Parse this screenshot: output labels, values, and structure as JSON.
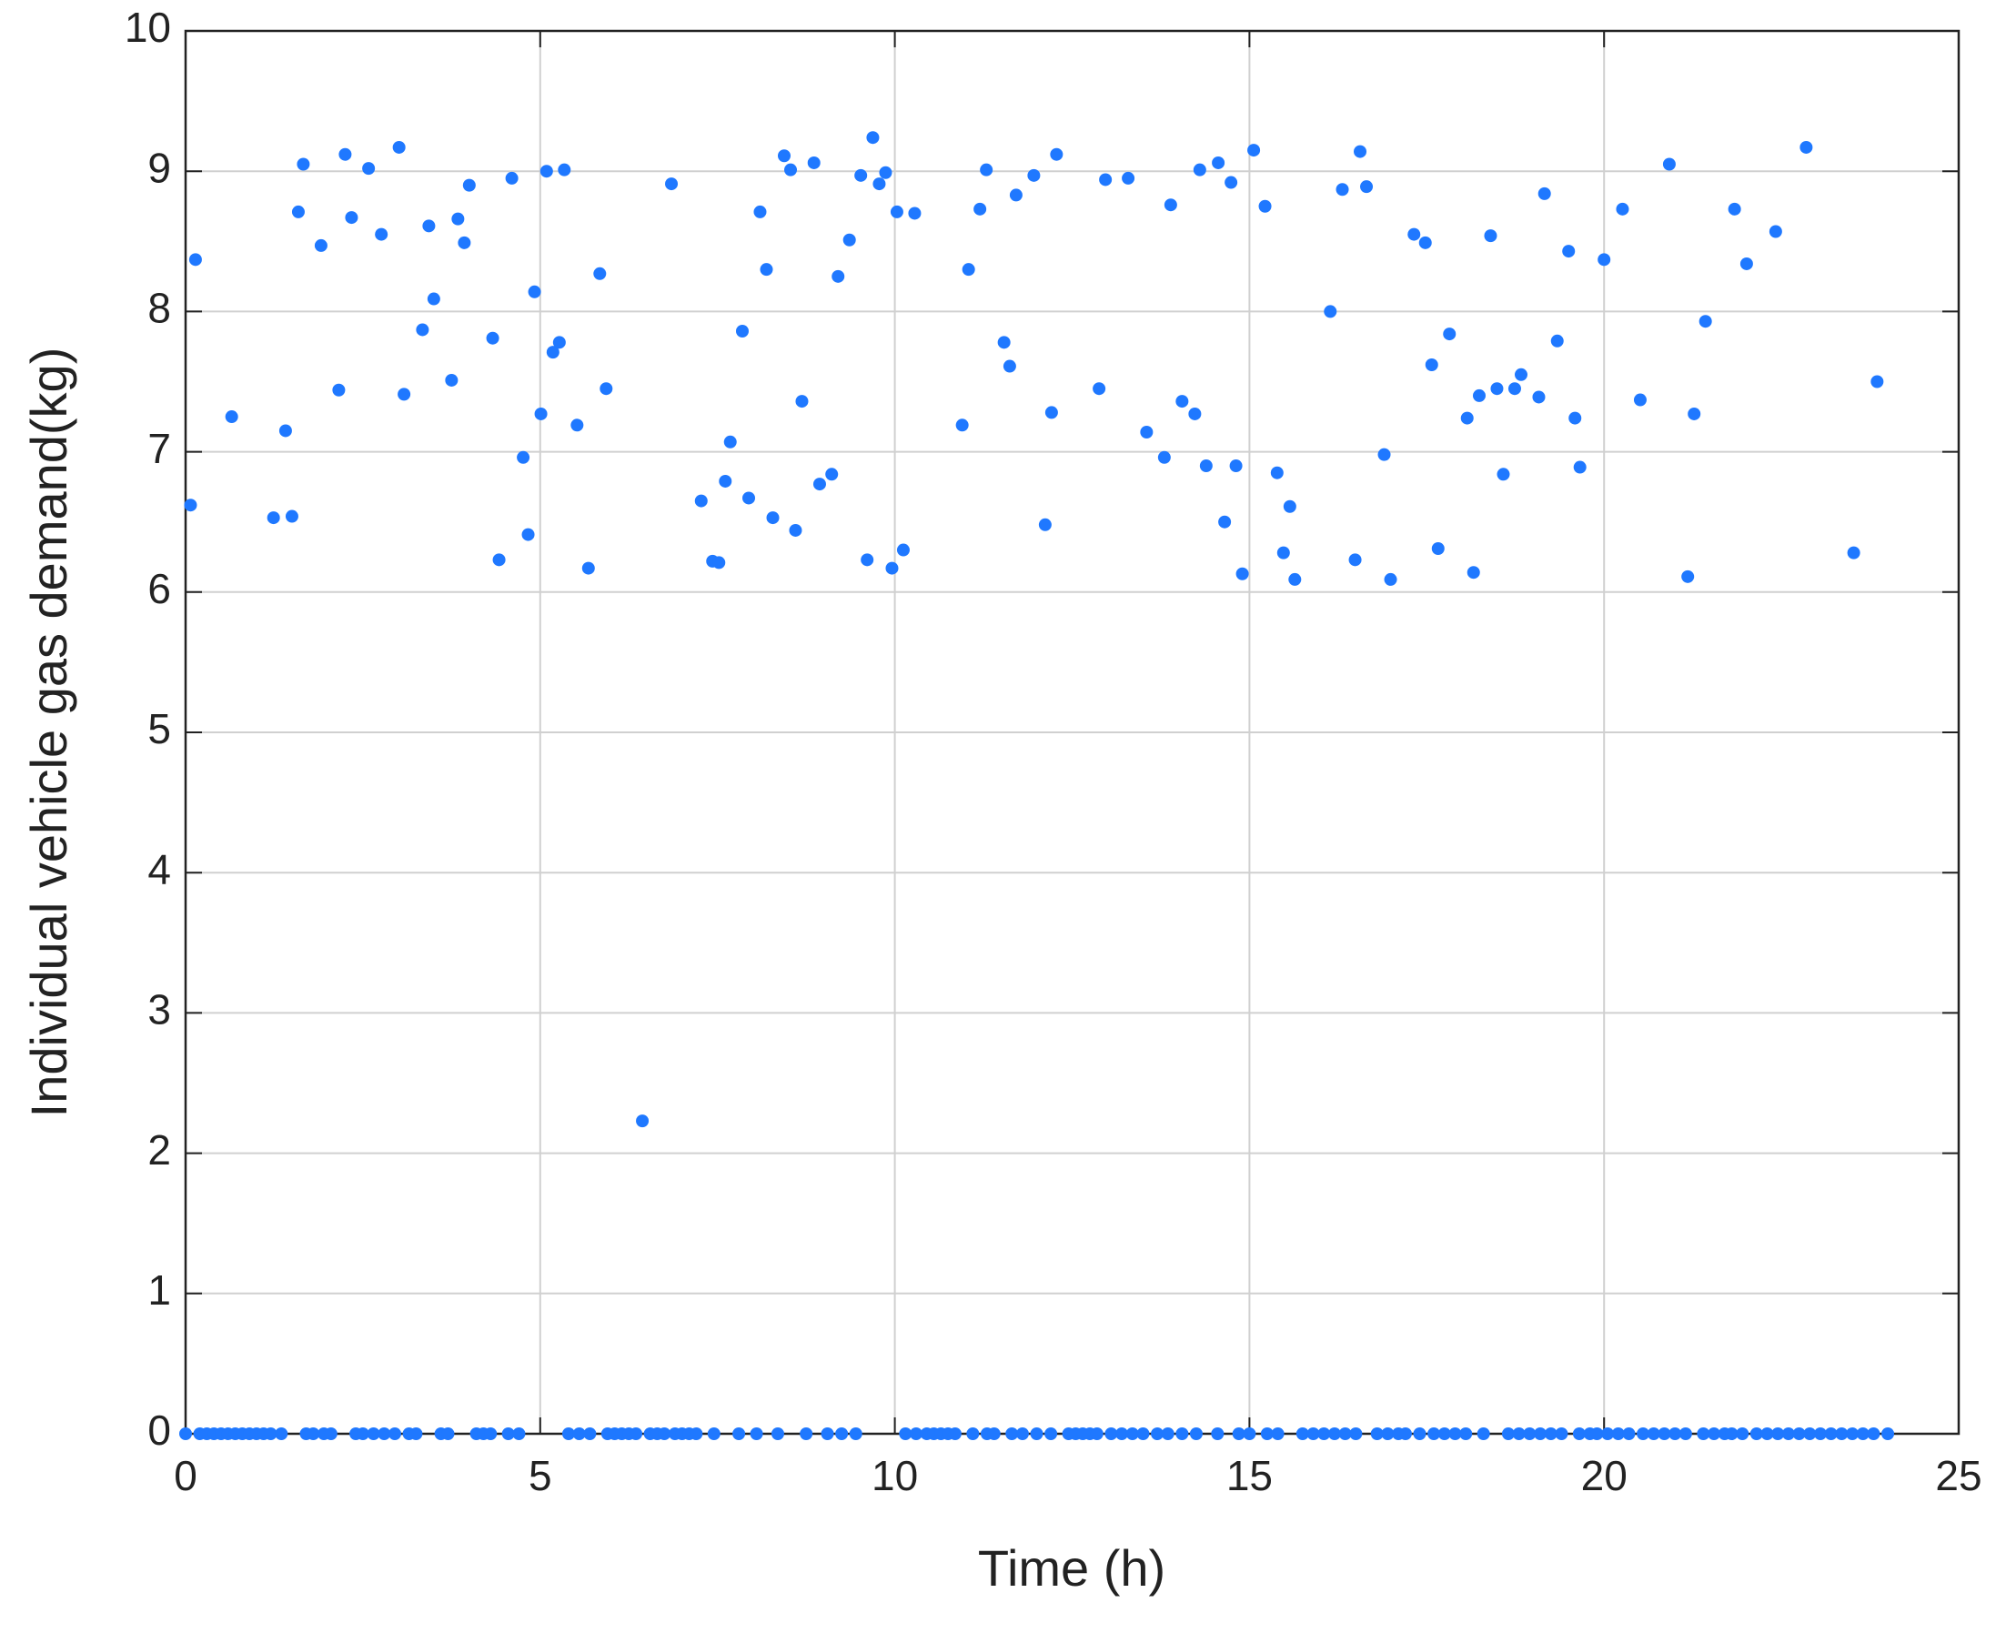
{
  "chart_data": {
    "type": "scatter",
    "xlabel": "Time (h)",
    "ylabel": "Individual vehicle gas demand(kg)",
    "color": "#1f78ff",
    "grid": true,
    "xlim": [
      0,
      25
    ],
    "xticks": [
      0,
      5,
      10,
      15,
      20,
      25
    ],
    "ylim": [
      0,
      10
    ],
    "yticks": [
      0,
      1,
      2,
      3,
      4,
      5,
      6,
      7,
      8,
      9,
      10
    ],
    "x": [
      0.07,
      0.14,
      0.65,
      1.24,
      1.41,
      1.5,
      1.59,
      1.66,
      1.91,
      2.16,
      2.25,
      2.34,
      2.58,
      2.76,
      3.01,
      3.08,
      3.34,
      3.43,
      3.5,
      3.75,
      3.84,
      3.93,
      4.0,
      4.33,
      4.42,
      4.6,
      4.76,
      4.83,
      4.92,
      5.01,
      5.09,
      5.18,
      5.27,
      5.34,
      5.52,
      5.68,
      5.84,
      5.93,
      6.44,
      6.85,
      7.27,
      7.43,
      7.52,
      7.61,
      7.68,
      7.85,
      7.94,
      8.1,
      8.19,
      8.28,
      8.44,
      8.53,
      8.6,
      8.69,
      8.86,
      8.94,
      9.11,
      9.2,
      9.36,
      9.52,
      9.61,
      9.69,
      9.78,
      9.87,
      9.96,
      10.03,
      10.12,
      10.28,
      10.95,
      11.04,
      11.2,
      11.29,
      11.54,
      11.62,
      11.71,
      11.96,
      12.12,
      12.21,
      12.28,
      12.88,
      12.97,
      13.29,
      13.55,
      13.8,
      13.89,
      14.05,
      14.23,
      14.3,
      14.39,
      14.56,
      14.65,
      14.74,
      14.81,
      14.9,
      15.06,
      15.22,
      15.39,
      15.48,
      15.57,
      15.64,
      16.14,
      16.31,
      16.49,
      16.56,
      16.65,
      16.9,
      16.99,
      17.32,
      17.48,
      17.57,
      17.66,
      17.82,
      18.07,
      18.16,
      18.24,
      18.4,
      18.49,
      18.58,
      18.74,
      18.83,
      19.08,
      19.16,
      19.34,
      19.5,
      19.59,
      19.66,
      20.0,
      20.26,
      20.51,
      20.92,
      21.18,
      21.27,
      21.43,
      21.84,
      22.01,
      22.42,
      22.85,
      23.52,
      23.85,
      0,
      0.2,
      0.3,
      0.4,
      0.5,
      0.6,
      0.7,
      0.8,
      0.9,
      1.0,
      1.1,
      1.2,
      1.35,
      1.7,
      1.8,
      1.95,
      2.05,
      2.4,
      2.5,
      2.65,
      2.8,
      2.95,
      3.15,
      3.25,
      3.6,
      3.7,
      4.1,
      4.2,
      4.3,
      4.55,
      4.7,
      5.4,
      5.55,
      5.7,
      5.95,
      6.05,
      6.15,
      6.25,
      6.35,
      6.55,
      6.65,
      6.75,
      6.9,
      7.0,
      7.1,
      7.2,
      7.45,
      7.8,
      8.05,
      8.35,
      8.75,
      9.05,
      9.25,
      9.45,
      10.15,
      10.3,
      10.45,
      10.55,
      10.65,
      10.75,
      10.85,
      11.1,
      11.3,
      11.4,
      11.65,
      11.8,
      12.0,
      12.2,
      12.45,
      12.55,
      12.65,
      12.75,
      12.85,
      13.05,
      13.2,
      13.35,
      13.5,
      13.7,
      13.85,
      14.05,
      14.25,
      14.55,
      14.85,
      15.0,
      15.25,
      15.4,
      15.75,
      15.9,
      16.05,
      16.2,
      16.35,
      16.5,
      16.8,
      16.95,
      17.1,
      17.2,
      17.4,
      17.6,
      17.75,
      17.9,
      18.05,
      18.3,
      18.65,
      18.8,
      18.95,
      19.1,
      19.25,
      19.4,
      19.65,
      19.8,
      19.9,
      20.05,
      20.2,
      20.35,
      20.55,
      20.7,
      20.85,
      21.0,
      21.15,
      21.4,
      21.55,
      21.7,
      21.8,
      21.95,
      22.15,
      22.3,
      22.45,
      22.6,
      22.75,
      22.9,
      23.05,
      23.2,
      23.35,
      23.5,
      23.65,
      23.8,
      24.0
    ],
    "y": [
      6.62,
      8.37,
      7.25,
      6.53,
      7.15,
      6.54,
      8.71,
      9.05,
      8.47,
      7.44,
      9.12,
      8.67,
      9.02,
      8.55,
      9.17,
      7.41,
      7.87,
      8.61,
      8.09,
      7.51,
      8.66,
      8.49,
      8.9,
      7.81,
      6.23,
      8.95,
      6.96,
      6.41,
      8.14,
      7.27,
      9.0,
      7.71,
      7.78,
      9.01,
      7.19,
      6.17,
      8.27,
      7.45,
      2.23,
      8.91,
      6.65,
      6.22,
      6.21,
      6.79,
      7.07,
      7.86,
      6.67,
      8.71,
      8.3,
      6.53,
      9.11,
      9.01,
      6.44,
      7.36,
      9.06,
      6.77,
      6.84,
      8.25,
      8.51,
      8.97,
      6.23,
      9.24,
      8.91,
      8.99,
      6.17,
      8.71,
      6.3,
      8.7,
      7.19,
      8.3,
      8.73,
      9.01,
      7.78,
      7.61,
      8.83,
      8.97,
      6.48,
      7.28,
      9.12,
      7.45,
      8.94,
      8.95,
      7.14,
      6.96,
      8.76,
      7.36,
      7.27,
      9.01,
      6.9,
      9.06,
      6.5,
      8.92,
      6.9,
      6.13,
      9.15,
      8.75,
      6.85,
      6.28,
      6.61,
      6.09,
      8.0,
      8.87,
      6.23,
      9.14,
      8.89,
      6.98,
      6.09,
      8.55,
      8.49,
      7.62,
      6.31,
      7.84,
      7.24,
      6.14,
      7.4,
      8.54,
      7.45,
      6.84,
      7.45,
      7.55,
      7.39,
      8.84,
      7.79,
      8.43,
      7.24,
      6.89,
      8.37,
      8.73,
      7.37,
      9.05,
      6.11,
      7.27,
      7.93,
      8.73,
      8.34,
      8.57,
      9.17,
      6.28,
      7.5,
      0,
      0,
      0,
      0,
      0,
      0,
      0,
      0,
      0,
      0,
      0,
      0,
      0,
      0,
      0,
      0,
      0,
      0,
      0,
      0,
      0,
      0,
      0,
      0,
      0,
      0,
      0,
      0,
      0,
      0,
      0,
      0,
      0,
      0,
      0,
      0,
      0,
      0,
      0,
      0,
      0,
      0,
      0,
      0,
      0,
      0,
      0,
      0,
      0,
      0,
      0,
      0,
      0,
      0,
      0,
      0,
      0,
      0,
      0,
      0,
      0,
      0,
      0,
      0,
      0,
      0,
      0,
      0,
      0,
      0,
      0,
      0,
      0,
      0,
      0,
      0,
      0,
      0,
      0,
      0,
      0,
      0,
      0,
      0,
      0,
      0,
      0,
      0,
      0,
      0,
      0,
      0,
      0,
      0,
      0,
      0,
      0,
      0,
      0,
      0,
      0,
      0,
      0,
      0,
      0,
      0,
      0,
      0,
      0,
      0,
      0,
      0,
      0,
      0,
      0,
      0,
      0,
      0,
      0,
      0,
      0,
      0,
      0,
      0,
      0,
      0,
      0,
      0,
      0,
      0,
      0,
      0,
      0,
      0,
      0,
      0,
      0
    ]
  }
}
